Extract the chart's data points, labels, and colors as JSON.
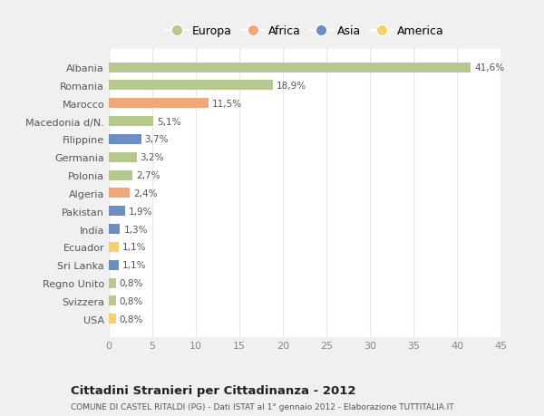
{
  "categories": [
    "Albania",
    "Romania",
    "Marocco",
    "Macedonia d/N.",
    "Filippine",
    "Germania",
    "Polonia",
    "Algeria",
    "Pakistan",
    "India",
    "Ecuador",
    "Sri Lanka",
    "Regno Unito",
    "Svizzera",
    "USA"
  ],
  "values": [
    41.6,
    18.9,
    11.5,
    5.1,
    3.7,
    3.2,
    2.7,
    2.4,
    1.9,
    1.3,
    1.1,
    1.1,
    0.8,
    0.8,
    0.8
  ],
  "labels": [
    "41,6%",
    "18,9%",
    "11,5%",
    "5,1%",
    "3,7%",
    "3,2%",
    "2,7%",
    "2,4%",
    "1,9%",
    "1,3%",
    "1,1%",
    "1,1%",
    "0,8%",
    "0,8%",
    "0,8%"
  ],
  "continents": [
    "Europa",
    "Europa",
    "Africa",
    "Europa",
    "Asia",
    "Europa",
    "Europa",
    "Africa",
    "Asia",
    "Asia",
    "America",
    "Asia",
    "Europa",
    "Europa",
    "America"
  ],
  "colors": {
    "Europa": "#b5c98e",
    "Africa": "#f0a878",
    "Asia": "#6b8ec4",
    "America": "#f5d06e"
  },
  "xlim": [
    0,
    45
  ],
  "xticks": [
    0,
    5,
    10,
    15,
    20,
    25,
    30,
    35,
    40,
    45
  ],
  "title": "Cittadini Stranieri per Cittadinanza - 2012",
  "subtitle": "COMUNE DI CASTEL RITALDI (PG) - Dati ISTAT al 1° gennaio 2012 - Elaborazione TUTTITALIA.IT",
  "outer_bg": "#f0f0f0",
  "inner_bg": "#ffffff",
  "grid_color": "#e8e8e8",
  "bar_height": 0.55,
  "legend_items": [
    "Europa",
    "Africa",
    "Asia",
    "America"
  ]
}
